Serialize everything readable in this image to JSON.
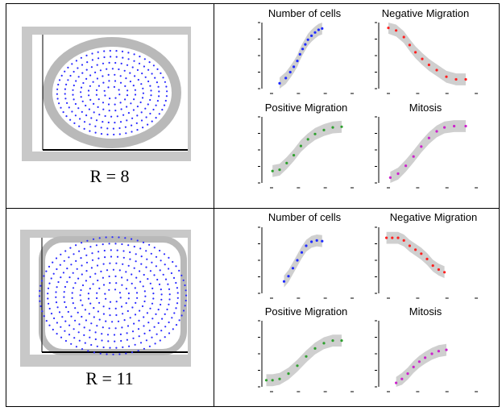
{
  "panels": [
    {
      "label": "R = 8",
      "lattice_shape": "ellipse",
      "subplots": [
        {
          "title": "Number of cells",
          "points": [
            [
              0.2,
              0.08
            ],
            [
              0.27,
              0.16
            ],
            [
              0.32,
              0.25
            ],
            [
              0.36,
              0.33
            ],
            [
              0.4,
              0.42
            ],
            [
              0.43,
              0.52
            ],
            [
              0.46,
              0.6
            ],
            [
              0.49,
              0.67
            ],
            [
              0.52,
              0.74
            ],
            [
              0.56,
              0.8
            ],
            [
              0.6,
              0.85
            ],
            [
              0.64,
              0.89
            ],
            [
              0.68,
              0.91
            ]
          ]
        },
        {
          "title": "Negative Migration",
          "points": [
            [
              0.1,
              0.92
            ],
            [
              0.18,
              0.88
            ],
            [
              0.26,
              0.78
            ],
            [
              0.32,
              0.66
            ],
            [
              0.38,
              0.55
            ],
            [
              0.45,
              0.45
            ],
            [
              0.52,
              0.36
            ],
            [
              0.6,
              0.28
            ],
            [
              0.7,
              0.18
            ],
            [
              0.8,
              0.14
            ],
            [
              0.9,
              0.14
            ]
          ]
        },
        {
          "title": "Positive Migration",
          "points": [
            [
              0.12,
              0.18
            ],
            [
              0.2,
              0.2
            ],
            [
              0.28,
              0.3
            ],
            [
              0.36,
              0.42
            ],
            [
              0.44,
              0.56
            ],
            [
              0.52,
              0.66
            ],
            [
              0.6,
              0.74
            ],
            [
              0.7,
              0.8
            ],
            [
              0.8,
              0.84
            ],
            [
              0.9,
              0.85
            ]
          ]
        },
        {
          "title": "Mitosis",
          "points": [
            [
              0.12,
              0.08
            ],
            [
              0.2,
              0.14
            ],
            [
              0.28,
              0.26
            ],
            [
              0.36,
              0.4
            ],
            [
              0.44,
              0.55
            ],
            [
              0.52,
              0.68
            ],
            [
              0.6,
              0.78
            ],
            [
              0.68,
              0.84
            ],
            [
              0.78,
              0.86
            ],
            [
              0.9,
              0.86
            ]
          ]
        }
      ]
    },
    {
      "label": "R = 11",
      "lattice_shape": "rounded-rect",
      "subplots": [
        {
          "title": "Number of cells",
          "points": [
            [
              0.25,
              0.18
            ],
            [
              0.3,
              0.26
            ],
            [
              0.35,
              0.38
            ],
            [
              0.4,
              0.5
            ],
            [
              0.45,
              0.62
            ],
            [
              0.5,
              0.72
            ],
            [
              0.56,
              0.78
            ],
            [
              0.62,
              0.8
            ],
            [
              0.68,
              0.79
            ]
          ]
        },
        {
          "title": "Negative Migration",
          "points": [
            [
              0.08,
              0.84
            ],
            [
              0.14,
              0.84
            ],
            [
              0.2,
              0.84
            ],
            [
              0.26,
              0.8
            ],
            [
              0.32,
              0.72
            ],
            [
              0.38,
              0.66
            ],
            [
              0.44,
              0.6
            ],
            [
              0.5,
              0.52
            ],
            [
              0.56,
              0.42
            ],
            [
              0.62,
              0.36
            ],
            [
              0.68,
              0.32
            ]
          ]
        },
        {
          "title": "Positive Migration",
          "points": [
            [
              0.05,
              0.1
            ],
            [
              0.12,
              0.1
            ],
            [
              0.2,
              0.12
            ],
            [
              0.3,
              0.2
            ],
            [
              0.4,
              0.32
            ],
            [
              0.5,
              0.46
            ],
            [
              0.6,
              0.58
            ],
            [
              0.7,
              0.66
            ],
            [
              0.8,
              0.7
            ],
            [
              0.9,
              0.7
            ]
          ]
        },
        {
          "title": "Mitosis",
          "points": [
            [
              0.18,
              0.06
            ],
            [
              0.24,
              0.12
            ],
            [
              0.3,
              0.2
            ],
            [
              0.36,
              0.3
            ],
            [
              0.42,
              0.38
            ],
            [
              0.48,
              0.44
            ],
            [
              0.55,
              0.5
            ],
            [
              0.62,
              0.54
            ],
            [
              0.7,
              0.56
            ]
          ]
        }
      ]
    }
  ],
  "series_colors": {
    "Number of cells": "#1f2bff",
    "Negative Migration": "#ff2020",
    "Positive Migration": "#2ea02e",
    "Mitosis": "#cc22cc"
  },
  "band_color": "#cfcfcf",
  "lattice_dot_color": "#2a2aff"
}
